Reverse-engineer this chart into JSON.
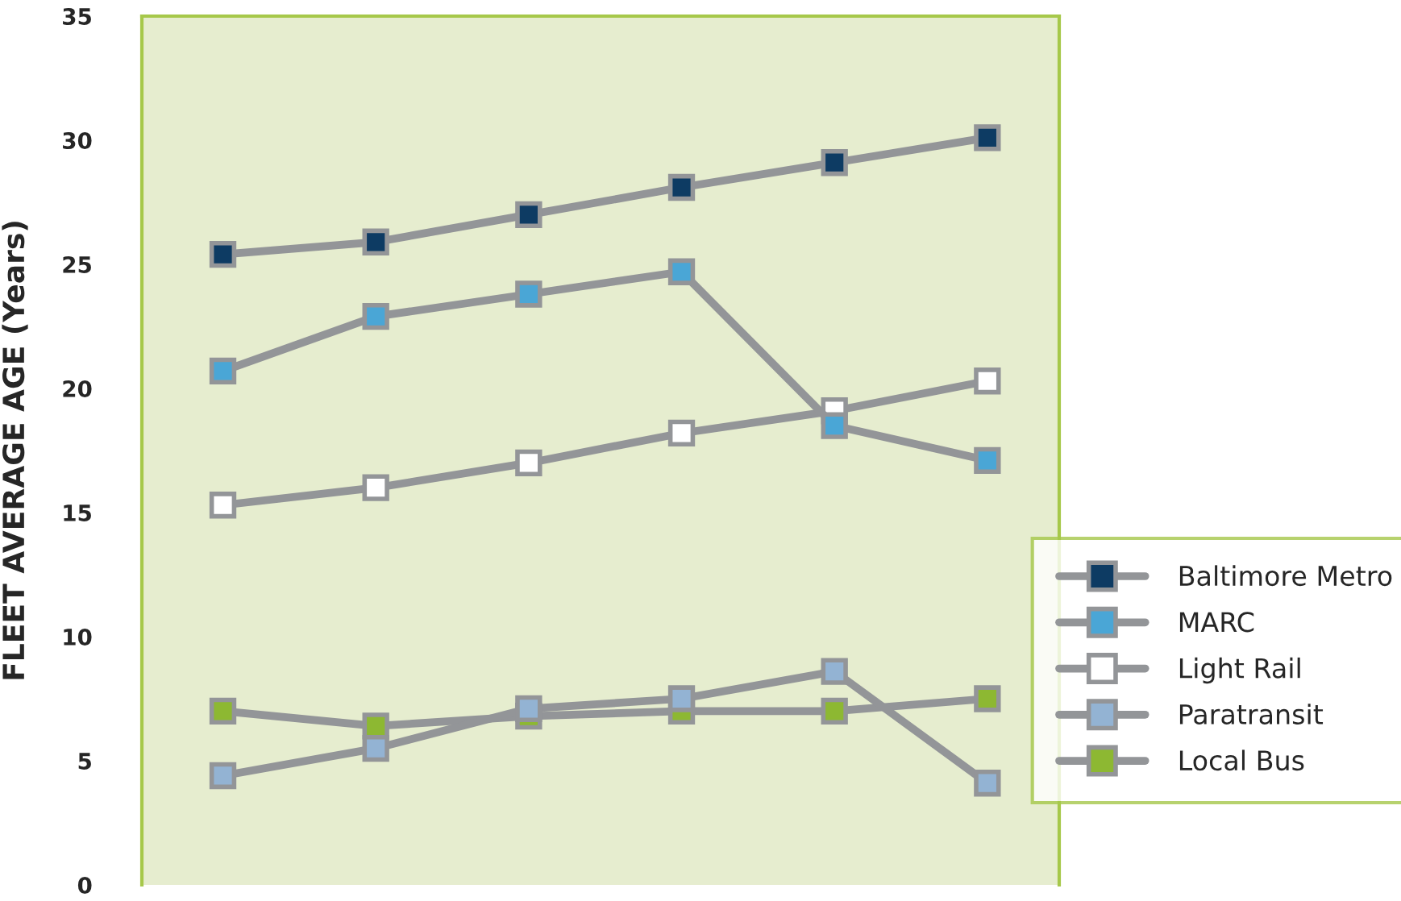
{
  "chart_data": {
    "type": "line",
    "ylabel": "FLEET AVERAGE AGE (Years)",
    "categories": [
      null,
      null,
      null,
      null,
      null,
      null
    ],
    "series": [
      {
        "name": "Baltimore Metro",
        "color": "#0d3b63",
        "values": [
          25.4,
          25.9,
          27.0,
          28.1,
          29.1,
          30.1
        ]
      },
      {
        "name": "MARC",
        "color": "#4aa6d6",
        "values": [
          20.7,
          22.9,
          23.8,
          24.7,
          18.5,
          17.1
        ]
      },
      {
        "name": "Light Rail",
        "color": "#ffffff",
        "values": [
          15.3,
          16.0,
          17.0,
          18.2,
          19.1,
          20.3
        ]
      },
      {
        "name": "Paratransit",
        "color": "#93b3d3",
        "values": [
          4.4,
          5.5,
          7.1,
          7.5,
          8.6,
          4.1
        ]
      },
      {
        "name": "Local Bus",
        "color": "#8db832",
        "values": [
          7.0,
          6.4,
          6.8,
          7.0,
          7.0,
          7.5
        ]
      }
    ],
    "ylim": [
      0,
      35
    ],
    "yticks": [
      0,
      5,
      10,
      15,
      20,
      25,
      30,
      35
    ],
    "grid": false,
    "legend": "right",
    "marker": "square",
    "line_style": "solid"
  }
}
